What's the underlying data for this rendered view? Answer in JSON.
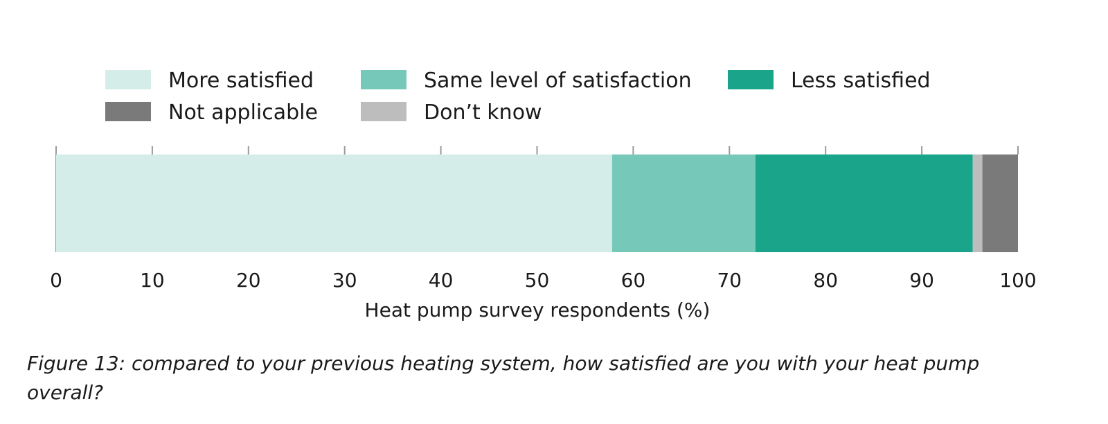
{
  "chart_data": {
    "type": "bar",
    "orientation": "horizontal",
    "stacked": true,
    "categories": [
      ""
    ],
    "series": [
      {
        "name": "More satisfied",
        "values": [
          57.8
        ],
        "color": "#d4ede8"
      },
      {
        "name": "Same level of satisfaction",
        "values": [
          14.9
        ],
        "color": "#76c9b9"
      },
      {
        "name": "Less satisfied",
        "values": [
          22.6
        ],
        "color": "#1aa58b"
      },
      {
        "name": "Don’t know",
        "values": [
          1.0
        ],
        "color": "#bdbdbd"
      },
      {
        "name": "Not applicable",
        "values": [
          3.7
        ],
        "color": "#7a7a7a"
      }
    ],
    "legend": [
      {
        "label": "More satisfied",
        "color": "#d4ede8"
      },
      {
        "label": "Same level of satisfaction",
        "color": "#76c9b9"
      },
      {
        "label": "Less satisfied",
        "color": "#1aa58b"
      },
      {
        "label": "Not applicable",
        "color": "#7a7a7a"
      },
      {
        "label": "Don’t know",
        "color": "#bdbdbd"
      }
    ],
    "legend_position": "top",
    "xlabel": "Heat pump survey respondents (%)",
    "ylabel": "",
    "xlim": [
      0,
      100
    ],
    "xticks": [
      "0",
      "10",
      "20",
      "30",
      "40",
      "50",
      "60",
      "70",
      "80",
      "90",
      "100"
    ],
    "grid": false
  },
  "caption": "Figure 13: compared to your previous heating system, how satisfied are you with your heat pump overall?"
}
